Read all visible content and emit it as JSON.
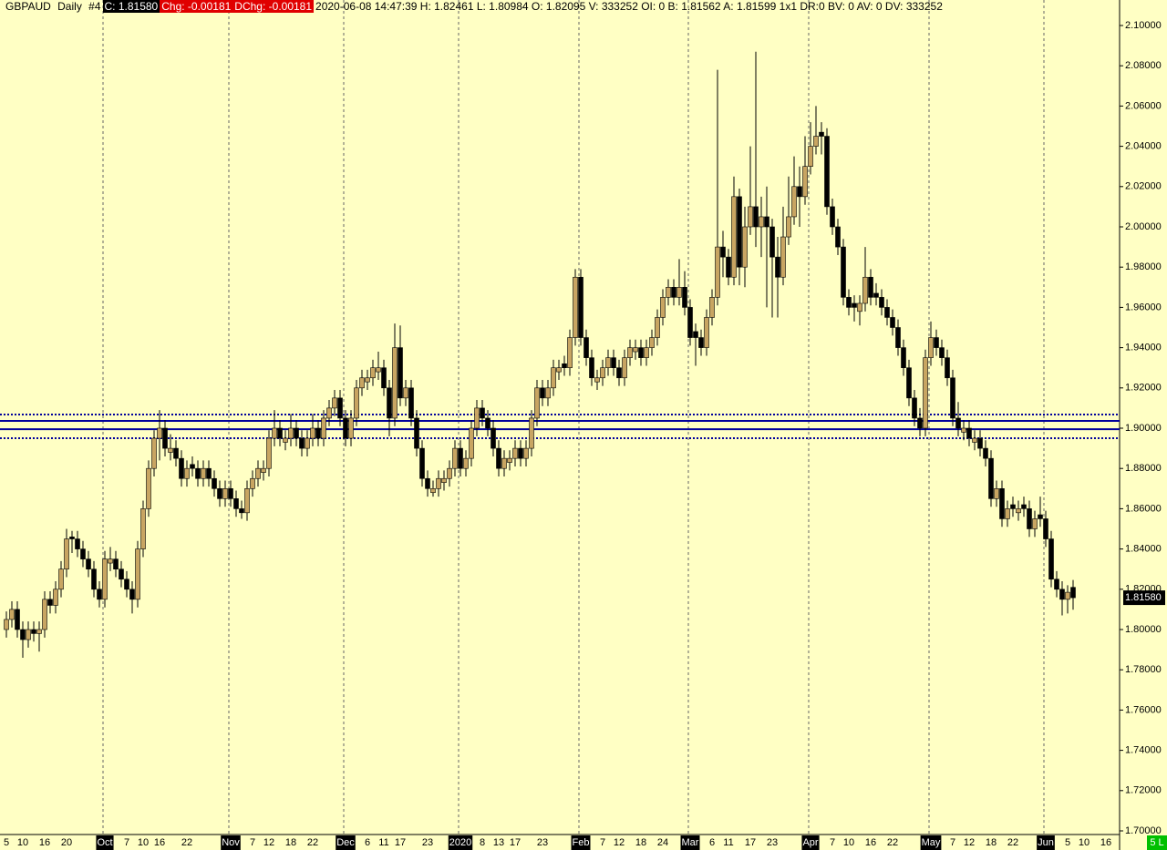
{
  "header": {
    "symbol": "GBPAUD",
    "interval": "Daily",
    "id": "#4",
    "close": "C: 1.81580",
    "chg": "Chg: -0.00181",
    "dchg": "DChg: -0.00181",
    "info": "2020-06-08 14:47:39 H: 1.82461 L: 1.80984 O: 1.82095 V: 333252 OI: 0 B: 1.81562 A: 1.81599 1x1 DR:0 BV: 0 AV: 0 DV: 333252"
  },
  "badge": "5 L",
  "chart_data": {
    "type": "candlestick",
    "up_color": "#c8a562",
    "down_color": "#000000",
    "ylim": [
      1.7,
      2.1
    ],
    "yticks": [
      {
        "value": 1.7,
        "label": "1.70000"
      },
      {
        "value": 1.72,
        "label": "1.72000"
      },
      {
        "value": 1.74,
        "label": "1.74000"
      },
      {
        "value": 1.76,
        "label": "1.76000"
      },
      {
        "value": 1.78,
        "label": "1.78000"
      },
      {
        "value": 1.8,
        "label": "1.80000"
      },
      {
        "value": 1.82,
        "label": "1.82000"
      },
      {
        "value": 1.84,
        "label": "1.84000"
      },
      {
        "value": 1.86,
        "label": "1.86000"
      },
      {
        "value": 1.88,
        "label": "1.88000"
      },
      {
        "value": 1.9,
        "label": "1.90000"
      },
      {
        "value": 1.92,
        "label": "1.92000"
      },
      {
        "value": 1.94,
        "label": "1.94000"
      },
      {
        "value": 1.96,
        "label": "1.96000"
      },
      {
        "value": 1.98,
        "label": "1.98000"
      },
      {
        "value": 2.0,
        "label": "2.00000"
      },
      {
        "value": 2.02,
        "label": "2.02000"
      },
      {
        "value": 2.04,
        "label": "2.04000"
      },
      {
        "value": 2.06,
        "label": "2.06000"
      },
      {
        "value": 2.08,
        "label": "2.08000"
      },
      {
        "value": 2.1,
        "label": "2.10000"
      }
    ],
    "hlines": [
      {
        "value": 1.9068,
        "style": "dotted",
        "color": "#00009c"
      },
      {
        "value": 1.9036,
        "style": "solid",
        "color": "#00009c"
      },
      {
        "value": 1.8995,
        "style": "solid",
        "color": "#00009c"
      },
      {
        "value": 1.895,
        "style": "dotted",
        "color": "#00009c"
      }
    ],
    "last_price": {
      "value": 1.8158,
      "label": "1.81580"
    },
    "categories": [
      "5",
      null,
      null,
      "10",
      null,
      null,
      null,
      "16",
      null,
      null,
      null,
      "20",
      null,
      null,
      null,
      null,
      null,
      null,
      "Oct",
      null,
      null,
      null,
      "7",
      null,
      null,
      "10",
      null,
      null,
      "16",
      null,
      null,
      null,
      null,
      "22",
      null,
      null,
      null,
      null,
      null,
      null,
      null,
      "Nov",
      null,
      null,
      null,
      "7",
      null,
      null,
      "12",
      null,
      null,
      null,
      "18",
      null,
      null,
      null,
      "22",
      null,
      null,
      null,
      null,
      null,
      "Dec",
      null,
      null,
      null,
      "6",
      null,
      null,
      "11",
      null,
      null,
      "17",
      null,
      null,
      null,
      null,
      "23",
      null,
      null,
      null,
      null,
      null,
      "2020",
      null,
      null,
      null,
      "8",
      null,
      null,
      "13",
      null,
      null,
      "17",
      null,
      null,
      null,
      null,
      "23",
      null,
      null,
      null,
      null,
      null,
      null,
      "Feb",
      null,
      null,
      null,
      "7",
      null,
      null,
      "12",
      null,
      null,
      null,
      "18",
      null,
      null,
      null,
      "24",
      null,
      null,
      null,
      null,
      "Mar",
      null,
      null,
      null,
      "6",
      null,
      null,
      "11",
      null,
      null,
      null,
      "17",
      null,
      null,
      null,
      "23",
      null,
      null,
      null,
      null,
      null,
      null,
      "Apr",
      null,
      null,
      null,
      "7",
      null,
      null,
      "10",
      null,
      null,
      null,
      "16",
      null,
      null,
      null,
      "22",
      null,
      null,
      null,
      null,
      null,
      null,
      "May",
      null,
      null,
      null,
      "7",
      null,
      null,
      "12",
      null,
      null,
      null,
      "18",
      null,
      null,
      null,
      "22",
      null,
      null,
      null,
      null,
      null,
      "Jun",
      null,
      null,
      null,
      "5",
      null,
      null,
      "10",
      null,
      null,
      null,
      "16"
    ],
    "candles": [
      [
        1.8,
        1.809,
        1.796,
        1.805
      ],
      [
        1.805,
        1.814,
        1.801,
        1.81
      ],
      [
        1.81,
        1.814,
        1.796,
        1.8
      ],
      [
        1.8,
        1.804,
        1.786,
        1.795
      ],
      [
        1.795,
        1.804,
        1.791,
        1.8
      ],
      [
        1.8,
        1.804,
        1.794,
        1.798
      ],
      [
        1.798,
        1.804,
        1.789,
        1.8
      ],
      [
        1.8,
        1.819,
        1.796,
        1.815
      ],
      [
        1.815,
        1.819,
        1.808,
        1.812
      ],
      [
        1.812,
        1.824,
        1.808,
        1.82
      ],
      [
        1.82,
        1.834,
        1.816,
        1.83
      ],
      [
        1.83,
        1.85,
        1.826,
        1.845
      ],
      [
        1.846,
        1.849,
        1.838,
        1.845
      ],
      [
        1.845,
        1.849,
        1.836,
        1.84
      ],
      [
        1.84,
        1.844,
        1.831,
        1.835
      ],
      [
        1.835,
        1.839,
        1.826,
        1.83
      ],
      [
        1.83,
        1.834,
        1.816,
        1.82
      ],
      [
        1.82,
        1.824,
        1.811,
        1.815
      ],
      [
        1.815,
        1.839,
        1.811,
        1.835
      ],
      [
        1.833,
        1.841,
        1.829,
        1.835
      ],
      [
        1.835,
        1.839,
        1.826,
        1.83
      ],
      [
        1.83,
        1.834,
        1.821,
        1.825
      ],
      [
        1.825,
        1.829,
        1.816,
        1.82
      ],
      [
        1.82,
        1.824,
        1.808,
        1.815
      ],
      [
        1.815,
        1.844,
        1.811,
        1.84
      ],
      [
        1.84,
        1.864,
        1.836,
        1.86
      ],
      [
        1.86,
        1.884,
        1.856,
        1.88
      ],
      [
        1.88,
        1.899,
        1.876,
        1.895
      ],
      [
        1.895,
        1.909,
        1.884,
        1.9
      ],
      [
        1.9,
        1.904,
        1.886,
        1.89
      ],
      [
        1.888,
        1.897,
        1.884,
        1.89
      ],
      [
        1.89,
        1.894,
        1.881,
        1.885
      ],
      [
        1.885,
        1.889,
        1.871,
        1.875
      ],
      [
        1.875,
        1.884,
        1.871,
        1.88
      ],
      [
        1.882,
        1.886,
        1.876,
        1.88
      ],
      [
        1.88,
        1.884,
        1.871,
        1.875
      ],
      [
        1.875,
        1.884,
        1.871,
        1.88
      ],
      [
        1.88,
        1.884,
        1.871,
        1.875
      ],
      [
        1.875,
        1.879,
        1.866,
        1.87
      ],
      [
        1.87,
        1.874,
        1.861,
        1.865
      ],
      [
        1.865,
        1.874,
        1.861,
        1.87
      ],
      [
        1.87,
        1.874,
        1.861,
        1.865
      ],
      [
        1.865,
        1.869,
        1.856,
        1.86
      ],
      [
        1.86,
        1.864,
        1.855,
        1.858
      ],
      [
        1.858,
        1.874,
        1.854,
        1.87
      ],
      [
        1.87,
        1.879,
        1.866,
        1.875
      ],
      [
        1.875,
        1.884,
        1.871,
        1.88
      ],
      [
        1.878,
        1.884,
        1.874,
        1.88
      ],
      [
        1.88,
        1.899,
        1.876,
        1.895
      ],
      [
        1.895,
        1.909,
        1.891,
        1.9
      ],
      [
        1.9,
        1.904,
        1.891,
        1.895
      ],
      [
        1.893,
        1.899,
        1.889,
        1.895
      ],
      [
        1.895,
        1.907,
        1.891,
        1.9
      ],
      [
        1.9,
        1.904,
        1.891,
        1.895
      ],
      [
        1.895,
        1.899,
        1.886,
        1.89
      ],
      [
        1.89,
        1.899,
        1.886,
        1.895
      ],
      [
        1.895,
        1.907,
        1.891,
        1.9
      ],
      [
        1.9,
        1.904,
        1.891,
        1.895
      ],
      [
        1.895,
        1.909,
        1.891,
        1.905
      ],
      [
        1.905,
        1.914,
        1.901,
        1.91
      ],
      [
        1.91,
        1.919,
        1.906,
        1.915
      ],
      [
        1.915,
        1.919,
        1.901,
        1.905
      ],
      [
        1.905,
        1.909,
        1.891,
        1.895
      ],
      [
        1.895,
        1.909,
        1.891,
        1.905
      ],
      [
        1.905,
        1.924,
        1.901,
        1.92
      ],
      [
        1.92,
        1.929,
        1.916,
        1.925
      ],
      [
        1.923,
        1.929,
        1.919,
        1.925
      ],
      [
        1.925,
        1.934,
        1.921,
        1.93
      ],
      [
        1.928,
        1.938,
        1.924,
        1.93
      ],
      [
        1.93,
        1.934,
        1.916,
        1.92
      ],
      [
        1.92,
        1.924,
        1.896,
        1.905
      ],
      [
        1.905,
        1.952,
        1.901,
        1.94
      ],
      [
        1.94,
        1.951,
        1.911,
        1.915
      ],
      [
        1.915,
        1.924,
        1.911,
        1.92
      ],
      [
        1.92,
        1.924,
        1.901,
        1.905
      ],
      [
        1.905,
        1.909,
        1.886,
        1.89
      ],
      [
        1.89,
        1.894,
        1.871,
        1.875
      ],
      [
        1.875,
        1.879,
        1.866,
        1.87
      ],
      [
        1.868,
        1.874,
        1.866,
        1.87
      ],
      [
        1.87,
        1.879,
        1.866,
        1.875
      ],
      [
        1.873,
        1.879,
        1.869,
        1.875
      ],
      [
        1.875,
        1.884,
        1.871,
        1.88
      ],
      [
        1.88,
        1.894,
        1.876,
        1.89
      ],
      [
        1.89,
        1.894,
        1.876,
        1.88
      ],
      [
        1.88,
        1.889,
        1.876,
        1.885
      ],
      [
        1.885,
        1.904,
        1.881,
        1.9
      ],
      [
        1.9,
        1.914,
        1.896,
        1.91
      ],
      [
        1.91,
        1.914,
        1.901,
        1.905
      ],
      [
        1.905,
        1.909,
        1.896,
        1.9
      ],
      [
        1.9,
        1.904,
        1.886,
        1.89
      ],
      [
        1.89,
        1.894,
        1.876,
        1.88
      ],
      [
        1.88,
        1.889,
        1.876,
        1.885
      ],
      [
        1.883,
        1.889,
        1.879,
        1.885
      ],
      [
        1.885,
        1.894,
        1.881,
        1.89
      ],
      [
        1.89,
        1.894,
        1.881,
        1.885
      ],
      [
        1.885,
        1.894,
        1.881,
        1.89
      ],
      [
        1.89,
        1.909,
        1.886,
        1.905
      ],
      [
        1.905,
        1.924,
        1.901,
        1.92
      ],
      [
        1.92,
        1.924,
        1.911,
        1.915
      ],
      [
        1.915,
        1.924,
        1.911,
        1.92
      ],
      [
        1.92,
        1.934,
        1.916,
        1.93
      ],
      [
        1.928,
        1.934,
        1.924,
        1.93
      ],
      [
        1.932,
        1.936,
        1.926,
        1.93
      ],
      [
        1.93,
        1.949,
        1.926,
        1.945
      ],
      [
        1.945,
        1.979,
        1.941,
        1.975
      ],
      [
        1.975,
        1.979,
        1.941,
        1.945
      ],
      [
        1.945,
        1.949,
        1.931,
        1.935
      ],
      [
        1.935,
        1.939,
        1.921,
        1.925
      ],
      [
        1.923,
        1.929,
        1.919,
        1.925
      ],
      [
        1.925,
        1.934,
        1.921,
        1.93
      ],
      [
        1.93,
        1.939,
        1.926,
        1.935
      ],
      [
        1.935,
        1.939,
        1.926,
        1.93
      ],
      [
        1.93,
        1.934,
        1.921,
        1.925
      ],
      [
        1.925,
        1.939,
        1.921,
        1.935
      ],
      [
        1.935,
        1.944,
        1.931,
        1.94
      ],
      [
        1.938,
        1.944,
        1.934,
        1.94
      ],
      [
        1.94,
        1.944,
        1.931,
        1.935
      ],
      [
        1.935,
        1.944,
        1.931,
        1.94
      ],
      [
        1.94,
        1.949,
        1.936,
        1.945
      ],
      [
        1.945,
        1.959,
        1.941,
        1.955
      ],
      [
        1.955,
        1.969,
        1.951,
        1.965
      ],
      [
        1.965,
        1.974,
        1.961,
        1.97
      ],
      [
        1.97,
        1.974,
        1.961,
        1.965
      ],
      [
        1.965,
        1.984,
        1.961,
        1.97
      ],
      [
        1.97,
        1.978,
        1.956,
        1.96
      ],
      [
        1.96,
        1.964,
        1.941,
        1.945
      ],
      [
        1.948,
        1.952,
        1.931,
        1.945
      ],
      [
        1.945,
        1.949,
        1.936,
        1.94
      ],
      [
        1.94,
        1.959,
        1.936,
        1.955
      ],
      [
        1.955,
        1.969,
        1.951,
        1.965
      ],
      [
        1.965,
        2.078,
        1.961,
        1.99
      ],
      [
        1.99,
        1.998,
        1.975,
        1.985
      ],
      [
        1.985,
        1.989,
        1.971,
        1.975
      ],
      [
        1.975,
        2.025,
        1.971,
        2.015
      ],
      [
        2.015,
        2.019,
        1.971,
        1.98
      ],
      [
        1.98,
        2.01,
        1.97,
        2.0
      ],
      [
        2.0,
        2.04,
        1.996,
        2.01
      ],
      [
        2.01,
        2.087,
        1.99,
        2.0
      ],
      [
        2.0,
        2.015,
        1.985,
        2.005
      ],
      [
        2.005,
        2.02,
        1.96,
        2.0
      ],
      [
        2.0,
        2.004,
        1.955,
        1.985
      ],
      [
        1.985,
        1.995,
        1.955,
        1.975
      ],
      [
        1.975,
        2.01,
        1.971,
        1.995
      ],
      [
        1.995,
        2.025,
        1.991,
        2.005
      ],
      [
        2.005,
        2.035,
        2.001,
        2.02
      ],
      [
        2.02,
        2.03,
        2.0,
        2.015
      ],
      [
        2.015,
        2.045,
        2.011,
        2.03
      ],
      [
        2.03,
        2.052,
        2.026,
        2.04
      ],
      [
        2.04,
        2.06,
        2.036,
        2.045
      ],
      [
        2.047,
        2.052,
        2.036,
        2.045
      ],
      [
        2.045,
        2.049,
        2.006,
        2.01
      ],
      [
        2.01,
        2.014,
        1.996,
        2.0
      ],
      [
        2.0,
        2.004,
        1.986,
        1.99
      ],
      [
        1.99,
        1.994,
        1.961,
        1.965
      ],
      [
        1.965,
        1.969,
        1.956,
        1.96
      ],
      [
        1.962,
        1.966,
        1.953,
        1.96
      ],
      [
        1.958,
        1.966,
        1.951,
        1.962
      ],
      [
        1.962,
        1.99,
        1.958,
        1.975
      ],
      [
        1.975,
        1.979,
        1.961,
        1.965
      ],
      [
        1.967,
        1.972,
        1.961,
        1.965
      ],
      [
        1.965,
        1.969,
        1.956,
        1.96
      ],
      [
        1.96,
        1.964,
        1.951,
        1.955
      ],
      [
        1.955,
        1.959,
        1.946,
        1.95
      ],
      [
        1.95,
        1.954,
        1.936,
        1.94
      ],
      [
        1.94,
        1.944,
        1.926,
        1.93
      ],
      [
        1.93,
        1.934,
        1.911,
        1.915
      ],
      [
        1.915,
        1.919,
        1.901,
        1.905
      ],
      [
        1.905,
        1.91,
        1.896,
        1.9
      ],
      [
        1.9,
        1.939,
        1.896,
        1.935
      ],
      [
        1.935,
        1.953,
        1.931,
        1.945
      ],
      [
        1.945,
        1.949,
        1.936,
        1.94
      ],
      [
        1.94,
        1.944,
        1.931,
        1.935
      ],
      [
        1.935,
        1.939,
        1.921,
        1.925
      ],
      [
        1.925,
        1.929,
        1.901,
        1.905
      ],
      [
        1.905,
        1.913,
        1.896,
        1.9
      ],
      [
        1.898,
        1.904,
        1.894,
        1.9
      ],
      [
        1.9,
        1.904,
        1.891,
        1.895
      ],
      [
        1.893,
        1.899,
        1.889,
        1.895
      ],
      [
        1.895,
        1.899,
        1.886,
        1.89
      ],
      [
        1.89,
        1.894,
        1.881,
        1.885
      ],
      [
        1.885,
        1.889,
        1.861,
        1.865
      ],
      [
        1.865,
        1.874,
        1.861,
        1.87
      ],
      [
        1.87,
        1.874,
        1.851,
        1.855
      ],
      [
        1.855,
        1.864,
        1.851,
        1.86
      ],
      [
        1.862,
        1.866,
        1.856,
        1.86
      ],
      [
        1.858,
        1.864,
        1.854,
        1.86
      ],
      [
        1.862,
        1.866,
        1.856,
        1.86
      ],
      [
        1.86,
        1.864,
        1.846,
        1.85
      ],
      [
        1.85,
        1.859,
        1.846,
        1.855
      ],
      [
        1.857,
        1.866,
        1.851,
        1.855
      ],
      [
        1.855,
        1.859,
        1.841,
        1.845
      ],
      [
        1.845,
        1.849,
        1.821,
        1.825
      ],
      [
        1.825,
        1.829,
        1.816,
        1.82
      ],
      [
        1.82,
        1.824,
        1.807,
        1.815
      ],
      [
        1.815,
        1.822,
        1.808,
        1.8185
      ],
      [
        1.82095,
        1.82461,
        1.80984,
        1.8158
      ],
      null,
      null,
      null,
      null,
      null,
      null
    ]
  }
}
